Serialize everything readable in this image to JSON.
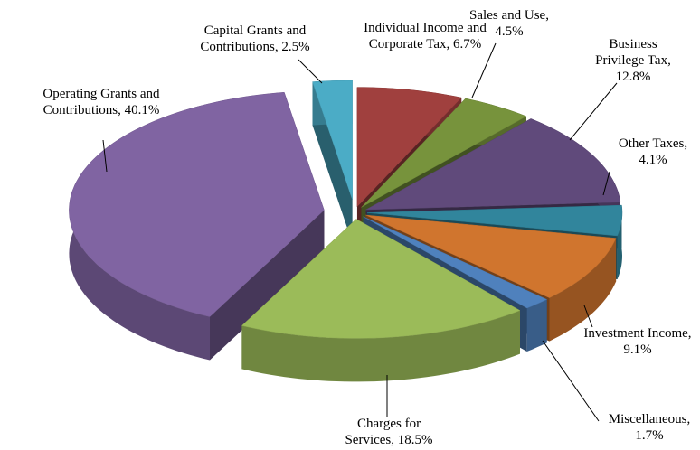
{
  "chart_data": {
    "type": "pie3d",
    "categories": [
      "Individual Income and Corporate Tax,",
      "Sales and Use,",
      "Business Privilege Tax,",
      "Other Taxes,",
      "Investment Income,",
      "Miscellaneous,",
      "Charges for Services,",
      "Operating Grants and Contributions,",
      "Capital Grants and Contributions,"
    ],
    "values": [
      6.7,
      4.5,
      12.8,
      4.1,
      9.1,
      1.7,
      18.5,
      40.1,
      2.5
    ],
    "value_labels": [
      "6.7%",
      "4.5%",
      "12.8%",
      "4.1%",
      "9.1%",
      "1.7%",
      "18.5%",
      "40.1%",
      "2.5%"
    ],
    "colors": [
      "#a0403e",
      "#77933c",
      "#604a7b",
      "#31859c",
      "#d0752e",
      "#4f81bd",
      "#9bbb59",
      "#8064a2",
      "#4bacc6"
    ]
  }
}
